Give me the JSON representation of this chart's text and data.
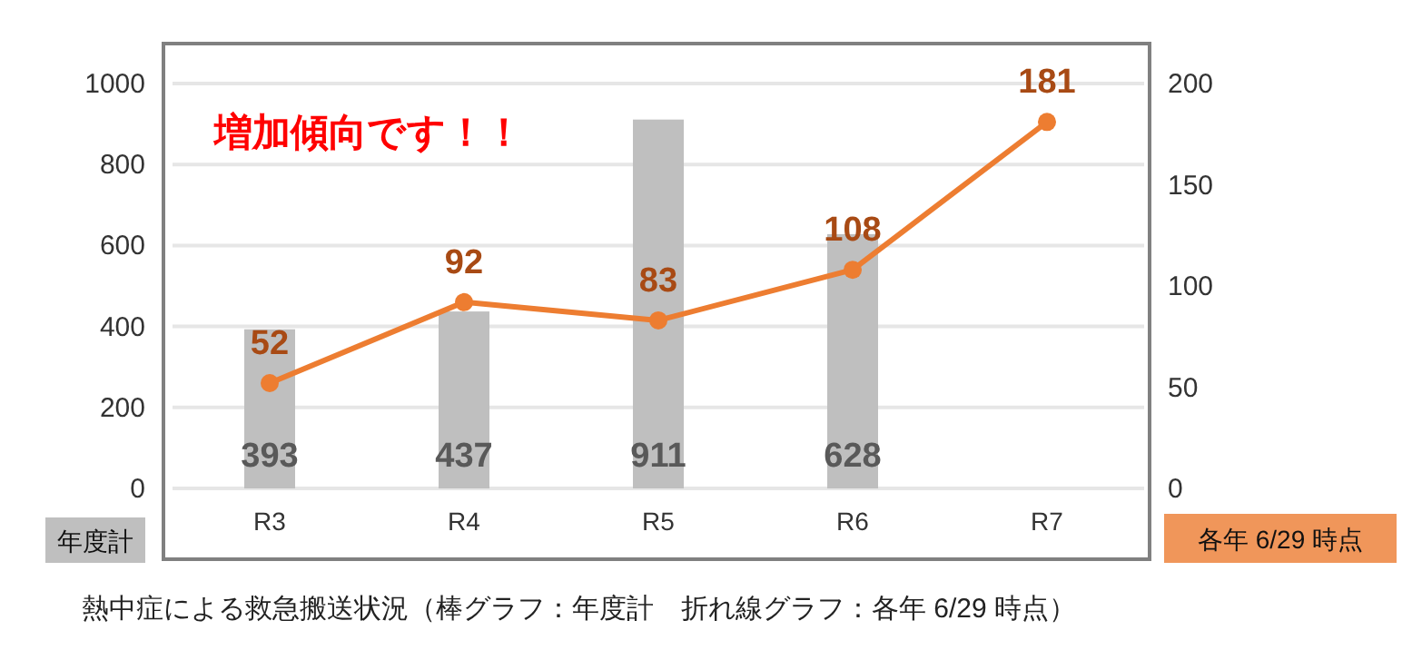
{
  "chart_data": {
    "type": "bar",
    "categories": [
      "R3",
      "R4",
      "R5",
      "R6",
      "R7"
    ],
    "series": [
      {
        "color": "#bfbfbf",
        "values": [
          393,
          437,
          911,
          628,
          null
        ]
      },
      {
        "type": "line",
        "axis": "y2",
        "color": "#ed7d31",
        "marker": "circle",
        "values": [
          52,
          92,
          83,
          108,
          181
        ]
      }
    ],
    "ylim": [
      0,
      1000
    ],
    "yticks": [
      0,
      200,
      400,
      600,
      800,
      1000
    ],
    "y2lim": [
      0,
      200
    ],
    "y2ticks": [
      0,
      50,
      100,
      150,
      200
    ],
    "ylabel": "年度計",
    "y2label": "各年 6/29 時点",
    "annotations": [
      "増加傾向です！！",
      "熱中症による救急搬送状況（棒グラフ：年度計　折れ線グラフ：各年 6/29 時点）"
    ],
    "data_labels": true,
    "grid": "y"
  }
}
